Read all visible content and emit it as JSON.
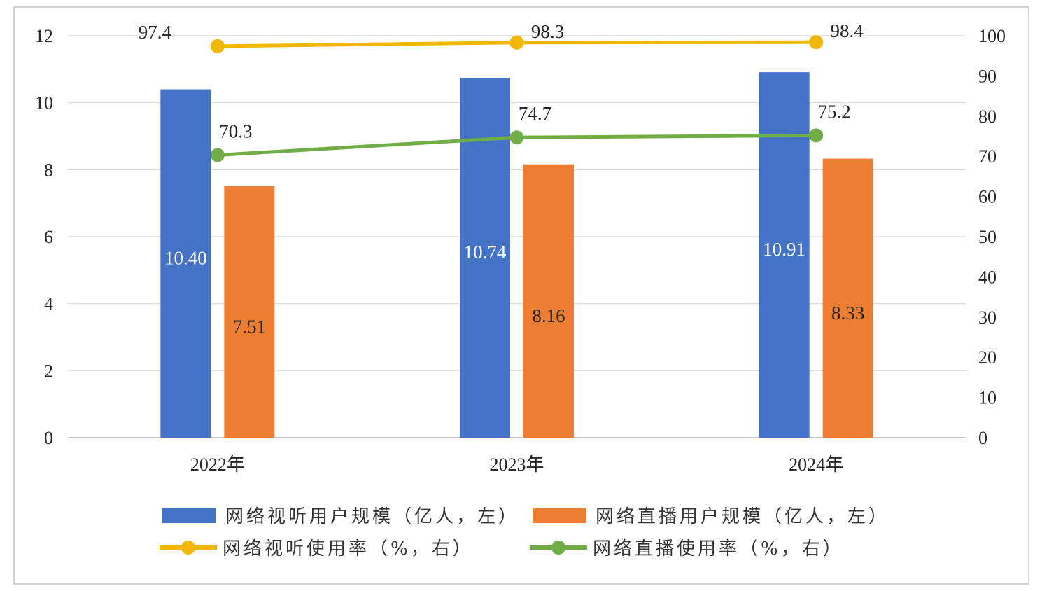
{
  "chart_data": {
    "type": "bar",
    "categories": [
      "2022年",
      "2023年",
      "2024年"
    ],
    "left_axis": {
      "ylim": [
        0,
        12
      ],
      "ticks": [
        "0",
        "2",
        "4",
        "6",
        "8",
        "10",
        "12"
      ]
    },
    "right_axis": {
      "ylim": [
        0,
        100
      ],
      "ticks": [
        "0",
        "10",
        "20",
        "30",
        "40",
        "50",
        "60",
        "70",
        "80",
        "90",
        "100"
      ]
    },
    "grid": true,
    "legend_position": "bottom",
    "series": [
      {
        "name": "网络视听用户规模（亿人，左）",
        "type": "bar",
        "axis": "left",
        "color": "#4472C4",
        "label_color": "#ffffff",
        "values": [
          10.4,
          10.74,
          10.91
        ],
        "labels": [
          "10.40",
          "10.74",
          "10.91"
        ]
      },
      {
        "name": "网络直播用户规模（亿人，左）",
        "type": "bar",
        "axis": "left",
        "color": "#ED7D31",
        "label_color": "#262626",
        "values": [
          7.51,
          8.16,
          8.33
        ],
        "labels": [
          "7.51",
          "8.16",
          "8.33"
        ]
      },
      {
        "name": "网络视听使用率（%，右）",
        "type": "line",
        "axis": "right",
        "color": "#F2B705",
        "label_color": "#262626",
        "values": [
          97.4,
          98.3,
          98.4
        ],
        "labels": [
          "97.4",
          "98.3",
          "98.4"
        ]
      },
      {
        "name": "网络直播使用率（%，右）",
        "type": "line",
        "axis": "right",
        "color": "#70AD47",
        "label_color": "#262626",
        "values": [
          70.3,
          74.7,
          75.2
        ],
        "labels": [
          "70.3",
          "74.7",
          "75.2"
        ]
      }
    ]
  }
}
